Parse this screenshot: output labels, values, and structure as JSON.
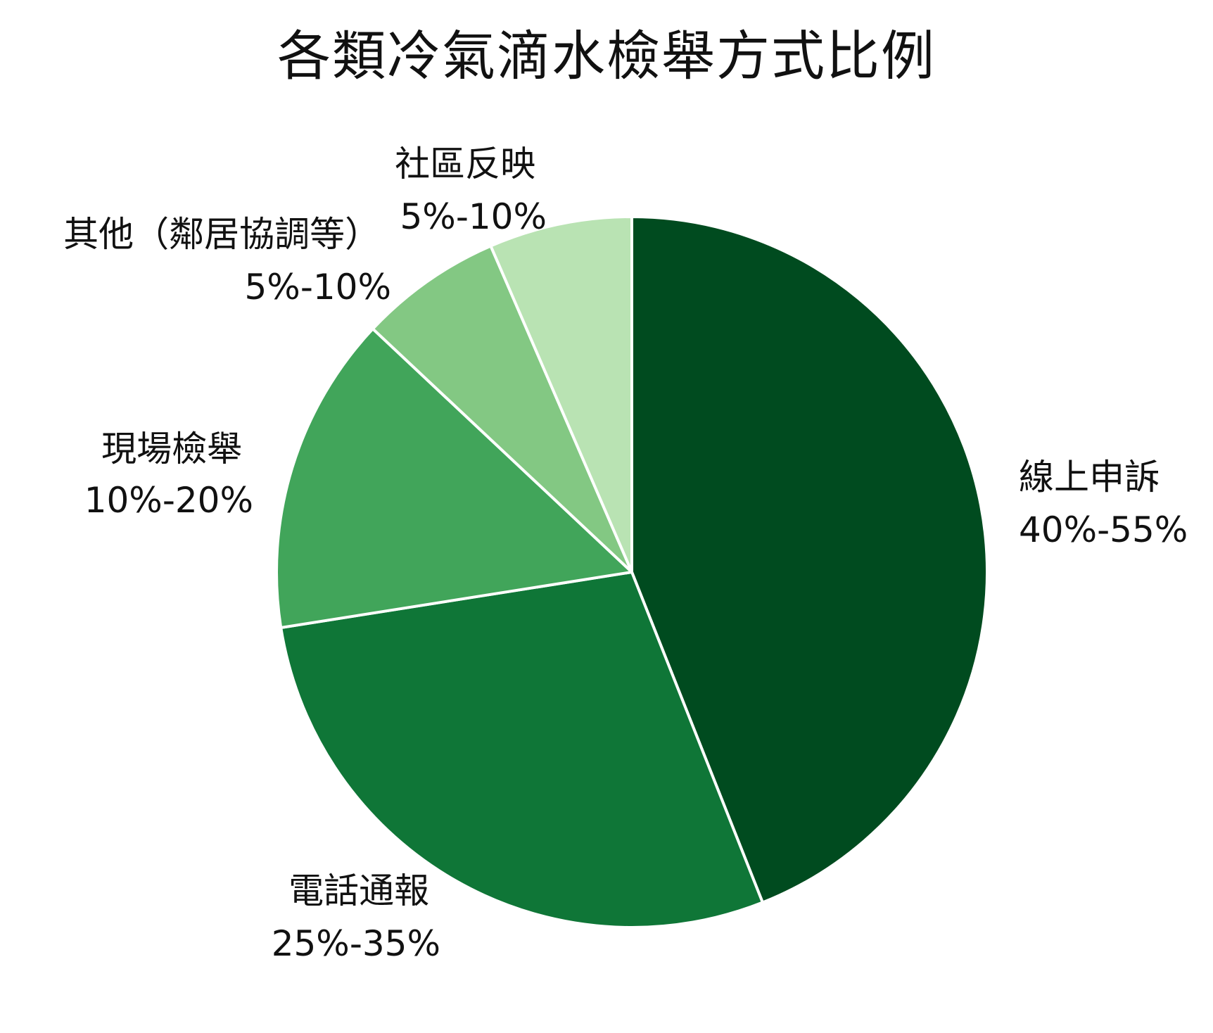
{
  "chart_data": {
    "type": "pie",
    "title": "各類冷氣滴水檢舉方式比例",
    "start": "12 o'clock, clockwise",
    "slices": [
      {
        "name": "線上申訴",
        "range": "40%-55%",
        "value": 44.0,
        "color": "#004b1f"
      },
      {
        "name": "電話通報",
        "range": "25%-35%",
        "value": 28.5,
        "color": "#0f7637"
      },
      {
        "name": "現場檢舉",
        "range": "10%-20%",
        "value": 14.5,
        "color": "#41a55a"
      },
      {
        "name": "其他（鄰居協調等）",
        "range": "5%-10%",
        "value": 6.5,
        "color": "#83c883"
      },
      {
        "name": "社區反映",
        "range": "5%-10%",
        "value": 6.5,
        "color": "#b9e3b3"
      }
    ]
  }
}
